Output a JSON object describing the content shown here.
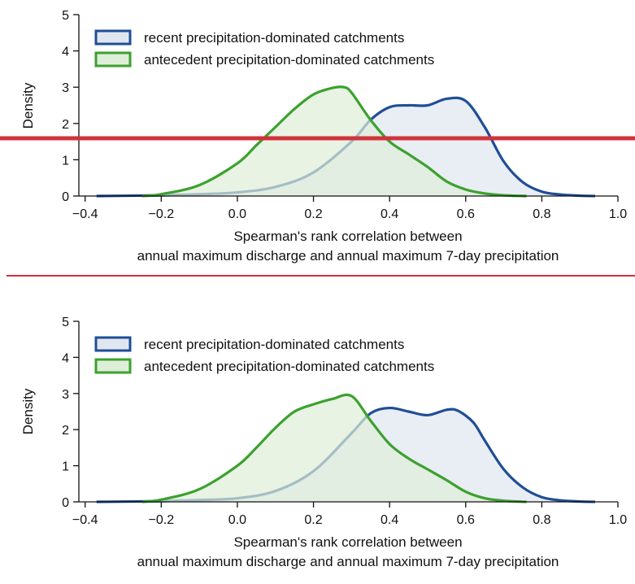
{
  "chart_data": [
    {
      "type": "area",
      "title": "",
      "xlabel": [
        "Spearman's rank correlation between",
        "annual maximum discharge and annual maximum 7-day precipitation"
      ],
      "ylabel": "Density",
      "xlim": [
        -0.42,
        1.0
      ],
      "ylim": [
        0,
        5
      ],
      "xticks": [
        "−0.4",
        "−0.2",
        "0.0",
        "0.2",
        "0.4",
        "0.6",
        "0.8",
        "1.0"
      ],
      "xtick_values": [
        -0.4,
        -0.2,
        0.0,
        0.2,
        0.4,
        0.6,
        0.8,
        1.0
      ],
      "yticks": [
        "0",
        "1",
        "2",
        "3",
        "4",
        "5"
      ],
      "ytick_values": [
        0,
        1,
        2,
        3,
        4,
        5
      ],
      "grid": false,
      "legend_position": "top-left",
      "series": [
        {
          "name": "recent precipitation-dominated catchments",
          "color": "#1f4e96",
          "fill": "#dfe6f0",
          "x": [
            -0.37,
            -0.2,
            -0.1,
            0.0,
            0.1,
            0.2,
            0.3,
            0.35,
            0.4,
            0.45,
            0.5,
            0.55,
            0.6,
            0.65,
            0.7,
            0.75,
            0.8,
            0.85,
            0.9,
            0.94
          ],
          "y": [
            0.0,
            0.02,
            0.05,
            0.1,
            0.25,
            0.65,
            1.5,
            2.1,
            2.45,
            2.5,
            2.5,
            2.68,
            2.62,
            1.9,
            0.95,
            0.38,
            0.12,
            0.04,
            0.01,
            0.0
          ]
        },
        {
          "name": "antecedent precipitation-dominated catchments",
          "color": "#3ca12e",
          "fill": "#deeed8",
          "x": [
            -0.25,
            -0.2,
            -0.1,
            0.0,
            0.05,
            0.1,
            0.15,
            0.2,
            0.25,
            0.28,
            0.3,
            0.35,
            0.4,
            0.45,
            0.5,
            0.55,
            0.6,
            0.65,
            0.7,
            0.76
          ],
          "y": [
            0.0,
            0.05,
            0.3,
            0.9,
            1.4,
            1.9,
            2.4,
            2.8,
            2.98,
            3.0,
            2.85,
            2.1,
            1.5,
            1.15,
            0.8,
            0.4,
            0.18,
            0.07,
            0.02,
            0.0
          ]
        }
      ]
    },
    {
      "type": "area",
      "title": "",
      "xlabel": [
        "Spearman's rank correlation between",
        "annual maximum discharge and annual maximum 7-day precipitation"
      ],
      "ylabel": "Density",
      "xlim": [
        -0.42,
        1.0
      ],
      "ylim": [
        0,
        5
      ],
      "xticks": [
        "−0.4",
        "−0.2",
        "0.0",
        "0.2",
        "0.4",
        "0.6",
        "0.8",
        "1.0"
      ],
      "xtick_values": [
        -0.4,
        -0.2,
        0.0,
        0.2,
        0.4,
        0.6,
        0.8,
        1.0
      ],
      "yticks": [
        "0",
        "1",
        "2",
        "3",
        "4",
        "5"
      ],
      "ytick_values": [
        0,
        1,
        2,
        3,
        4,
        5
      ],
      "grid": false,
      "legend_position": "top-left",
      "series": [
        {
          "name": "recent precipitation-dominated catchments",
          "color": "#1f4e96",
          "fill": "#dfe6f0",
          "x": [
            -0.37,
            -0.2,
            -0.1,
            0.0,
            0.1,
            0.2,
            0.3,
            0.35,
            0.4,
            0.45,
            0.5,
            0.55,
            0.58,
            0.62,
            0.65,
            0.7,
            0.75,
            0.8,
            0.85,
            0.9,
            0.94
          ],
          "y": [
            0.0,
            0.02,
            0.05,
            0.1,
            0.3,
            0.85,
            1.9,
            2.45,
            2.6,
            2.5,
            2.4,
            2.55,
            2.52,
            2.2,
            1.7,
            0.9,
            0.4,
            0.13,
            0.04,
            0.01,
            0.0
          ]
        },
        {
          "name": "antecedent precipitation-dominated catchments",
          "color": "#3ca12e",
          "fill": "#deeed8",
          "x": [
            -0.25,
            -0.2,
            -0.1,
            0.0,
            0.05,
            0.1,
            0.15,
            0.2,
            0.25,
            0.3,
            0.35,
            0.4,
            0.45,
            0.5,
            0.55,
            0.6,
            0.65,
            0.7,
            0.76
          ],
          "y": [
            0.0,
            0.06,
            0.35,
            1.0,
            1.5,
            2.05,
            2.5,
            2.7,
            2.85,
            2.93,
            2.25,
            1.6,
            1.2,
            0.9,
            0.6,
            0.28,
            0.1,
            0.03,
            0.0
          ]
        }
      ]
    }
  ]
}
